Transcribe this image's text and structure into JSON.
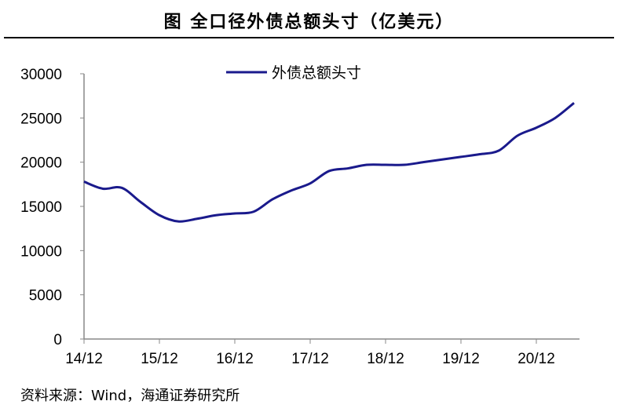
{
  "title": "图  全口径外债总额头寸（亿美元）",
  "source": "资料来源：Wind，海通证券研究所",
  "chart_data": {
    "type": "line",
    "title": "图  全口径外债总额头寸（亿美元）",
    "xlabel": "",
    "ylabel": "",
    "ylim": [
      0,
      30000
    ],
    "yticks": [
      0,
      5000,
      10000,
      15000,
      20000,
      25000,
      30000
    ],
    "xticks": [
      "14/12",
      "15/12",
      "16/12",
      "17/12",
      "18/12",
      "19/12",
      "20/12"
    ],
    "legend": "top-center",
    "grid": false,
    "color": "#1a1a8c",
    "x": [
      "14/12",
      "15/03",
      "15/06",
      "15/09",
      "15/12",
      "16/03",
      "16/06",
      "16/09",
      "16/12",
      "17/03",
      "17/06",
      "17/09",
      "17/12",
      "18/03",
      "18/06",
      "18/09",
      "18/12",
      "19/03",
      "19/06",
      "19/09",
      "19/12",
      "20/03",
      "20/06",
      "20/09",
      "20/12",
      "21/03",
      "21/06"
    ],
    "series": [
      {
        "name": "外债总额头寸",
        "values": [
          17800,
          17000,
          17100,
          15500,
          14000,
          13300,
          13600,
          14000,
          14200,
          14400,
          15800,
          16800,
          17600,
          19000,
          19300,
          19700,
          19700,
          19700,
          20000,
          20300,
          20600,
          20900,
          21300,
          23000,
          23900,
          25000,
          26700
        ]
      }
    ]
  }
}
